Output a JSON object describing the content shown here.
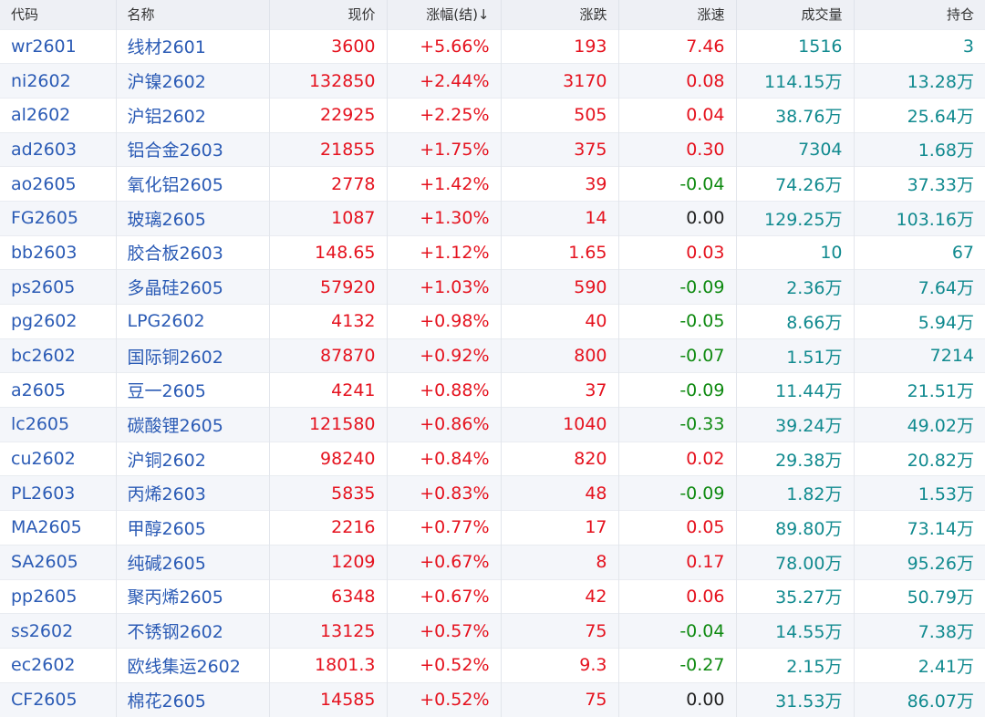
{
  "columns": {
    "code": "代码",
    "name": "名称",
    "price": "现价",
    "change_pct": "涨幅(结)↓",
    "change": "涨跌",
    "speed": "涨速",
    "volume": "成交量",
    "open_interest": "持仓"
  },
  "colors": {
    "up": "#e5121e",
    "down": "#0f8a11",
    "flat": "#222222",
    "link": "#2b5bb5",
    "volume": "#118a8f"
  },
  "rows": [
    {
      "code": "wr2601",
      "name": "线材2601",
      "price": "3600",
      "change_pct": "+5.66%",
      "change": "193",
      "speed": "7.46",
      "speed_dir": "pos",
      "volume": "1516",
      "oi": "3"
    },
    {
      "code": "ni2602",
      "name": "沪镍2602",
      "price": "132850",
      "change_pct": "+2.44%",
      "change": "3170",
      "speed": "0.08",
      "speed_dir": "pos",
      "volume": "114.15万",
      "oi": "13.28万"
    },
    {
      "code": "al2602",
      "name": "沪铝2602",
      "price": "22925",
      "change_pct": "+2.25%",
      "change": "505",
      "speed": "0.04",
      "speed_dir": "pos",
      "volume": "38.76万",
      "oi": "25.64万"
    },
    {
      "code": "ad2603",
      "name": "铝合金2603",
      "price": "21855",
      "change_pct": "+1.75%",
      "change": "375",
      "speed": "0.30",
      "speed_dir": "pos",
      "volume": "7304",
      "oi": "1.68万"
    },
    {
      "code": "ao2605",
      "name": "氧化铝2605",
      "price": "2778",
      "change_pct": "+1.42%",
      "change": "39",
      "speed": "-0.04",
      "speed_dir": "neg",
      "volume": "74.26万",
      "oi": "37.33万"
    },
    {
      "code": "FG2605",
      "name": "玻璃2605",
      "price": "1087",
      "change_pct": "+1.30%",
      "change": "14",
      "speed": "0.00",
      "speed_dir": "flat",
      "volume": "129.25万",
      "oi": "103.16万"
    },
    {
      "code": "bb2603",
      "name": "胶合板2603",
      "price": "148.65",
      "change_pct": "+1.12%",
      "change": "1.65",
      "speed": "0.03",
      "speed_dir": "pos",
      "volume": "10",
      "oi": "67"
    },
    {
      "code": "ps2605",
      "name": "多晶硅2605",
      "price": "57920",
      "change_pct": "+1.03%",
      "change": "590",
      "speed": "-0.09",
      "speed_dir": "neg",
      "volume": "2.36万",
      "oi": "7.64万"
    },
    {
      "code": "pg2602",
      "name": "LPG2602",
      "price": "4132",
      "change_pct": "+0.98%",
      "change": "40",
      "speed": "-0.05",
      "speed_dir": "neg",
      "volume": "8.66万",
      "oi": "5.94万"
    },
    {
      "code": "bc2602",
      "name": "国际铜2602",
      "price": "87870",
      "change_pct": "+0.92%",
      "change": "800",
      "speed": "-0.07",
      "speed_dir": "neg",
      "volume": "1.51万",
      "oi": "7214"
    },
    {
      "code": "a2605",
      "name": "豆一2605",
      "price": "4241",
      "change_pct": "+0.88%",
      "change": "37",
      "speed": "-0.09",
      "speed_dir": "neg",
      "volume": "11.44万",
      "oi": "21.51万"
    },
    {
      "code": "lc2605",
      "name": "碳酸锂2605",
      "price": "121580",
      "change_pct": "+0.86%",
      "change": "1040",
      "speed": "-0.33",
      "speed_dir": "neg",
      "volume": "39.24万",
      "oi": "49.02万"
    },
    {
      "code": "cu2602",
      "name": "沪铜2602",
      "price": "98240",
      "change_pct": "+0.84%",
      "change": "820",
      "speed": "0.02",
      "speed_dir": "pos",
      "volume": "29.38万",
      "oi": "20.82万"
    },
    {
      "code": "PL2603",
      "name": "丙烯2603",
      "price": "5835",
      "change_pct": "+0.83%",
      "change": "48",
      "speed": "-0.09",
      "speed_dir": "neg",
      "volume": "1.82万",
      "oi": "1.53万"
    },
    {
      "code": "MA2605",
      "name": "甲醇2605",
      "price": "2216",
      "change_pct": "+0.77%",
      "change": "17",
      "speed": "0.05",
      "speed_dir": "pos",
      "volume": "89.80万",
      "oi": "73.14万"
    },
    {
      "code": "SA2605",
      "name": "纯碱2605",
      "price": "1209",
      "change_pct": "+0.67%",
      "change": "8",
      "speed": "0.17",
      "speed_dir": "pos",
      "volume": "78.00万",
      "oi": "95.26万"
    },
    {
      "code": "pp2605",
      "name": "聚丙烯2605",
      "price": "6348",
      "change_pct": "+0.67%",
      "change": "42",
      "speed": "0.06",
      "speed_dir": "pos",
      "volume": "35.27万",
      "oi": "50.79万"
    },
    {
      "code": "ss2602",
      "name": "不锈钢2602",
      "price": "13125",
      "change_pct": "+0.57%",
      "change": "75",
      "speed": "-0.04",
      "speed_dir": "neg",
      "volume": "14.55万",
      "oi": "7.38万"
    },
    {
      "code": "ec2602",
      "name": "欧线集运2602",
      "price": "1801.3",
      "change_pct": "+0.52%",
      "change": "9.3",
      "speed": "-0.27",
      "speed_dir": "neg",
      "volume": "2.15万",
      "oi": "2.41万"
    },
    {
      "code": "CF2605",
      "name": "棉花2605",
      "price": "14585",
      "change_pct": "+0.52%",
      "change": "75",
      "speed": "0.00",
      "speed_dir": "flat",
      "volume": "31.53万",
      "oi": "86.07万"
    }
  ]
}
